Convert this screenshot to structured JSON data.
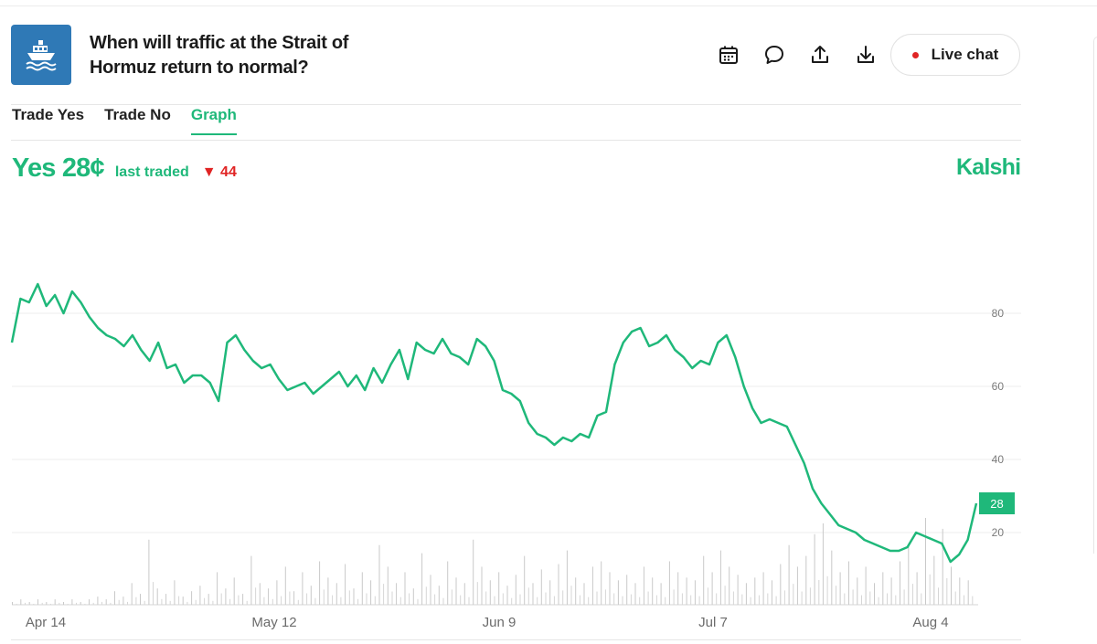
{
  "header": {
    "title": "When will traffic at the Strait of Hormuz return to normal?",
    "icon": "ship-icon",
    "actions": [
      "calendar-icon",
      "comment-icon",
      "share-icon",
      "download-icon"
    ],
    "live_chat_label": "Live chat"
  },
  "tabs": [
    {
      "label": "Trade Yes"
    },
    {
      "label": "Trade No"
    },
    {
      "label": "Graph",
      "active": true
    }
  ],
  "summary": {
    "yes_price": "Yes 28¢",
    "last_traded_label": "last traded",
    "change": "▼ 44",
    "brand": "Kalshi"
  },
  "colors": {
    "accent": "#1fb87a",
    "down": "#e02424",
    "icon_bg": "#2f79b6"
  },
  "chart_data": {
    "type": "line",
    "x_tick_labels": [
      "Apr 14",
      "May 12",
      "Jun 9",
      "Jul 7",
      "Aug 4"
    ],
    "y_ticks": [
      20,
      40,
      60,
      80
    ],
    "ylim": [
      0,
      92
    ],
    "grid": true,
    "current_value_label": "28",
    "series": [
      {
        "values": [
          72,
          84,
          83,
          88,
          82,
          85,
          80,
          86,
          83,
          79,
          76,
          74,
          73,
          71,
          74,
          70,
          67,
          72,
          65,
          66,
          61,
          63,
          63,
          61,
          56,
          72,
          74,
          70,
          67,
          65,
          66,
          62,
          59,
          60,
          61,
          58,
          60,
          62,
          64,
          60,
          63,
          59,
          65,
          61,
          66,
          70,
          62,
          72,
          70,
          69,
          73,
          69,
          68,
          66,
          73,
          71,
          67,
          59,
          58,
          56,
          50,
          47,
          46,
          44,
          46,
          45,
          47,
          46,
          52,
          53,
          66,
          72,
          75,
          76,
          71,
          72,
          74,
          70,
          68,
          65,
          67,
          66,
          72,
          74,
          68,
          60,
          54,
          50,
          51,
          50,
          49,
          44,
          39,
          32,
          28,
          25,
          22,
          21,
          20,
          18,
          17,
          16,
          15,
          15,
          16,
          20,
          19,
          18,
          17,
          12,
          14,
          18,
          28
        ],
        "volume": [
          1,
          2,
          1,
          2,
          1,
          2,
          1,
          2,
          1,
          2,
          3,
          2,
          5,
          3,
          8,
          4,
          24,
          6,
          4,
          9,
          3,
          5,
          7,
          4,
          12,
          6,
          10,
          4,
          18,
          8,
          6,
          9,
          14,
          5,
          12,
          7,
          16,
          10,
          8,
          15,
          6,
          12,
          9,
          22,
          14,
          8,
          12,
          6,
          19,
          11,
          7,
          16,
          10,
          8,
          24,
          14,
          9,
          12,
          7,
          11,
          18,
          8,
          13,
          9,
          15,
          20,
          10,
          8,
          14,
          16,
          12,
          9,
          11,
          8,
          14,
          10,
          8,
          16,
          12,
          10,
          9,
          18,
          12,
          20,
          14,
          11,
          8,
          10,
          12,
          9,
          15,
          22,
          14,
          18,
          26,
          30,
          20,
          12,
          16,
          10,
          14,
          8,
          12,
          10,
          16,
          22,
          12,
          32,
          18,
          28,
          14,
          10,
          9
        ]
      }
    ]
  }
}
